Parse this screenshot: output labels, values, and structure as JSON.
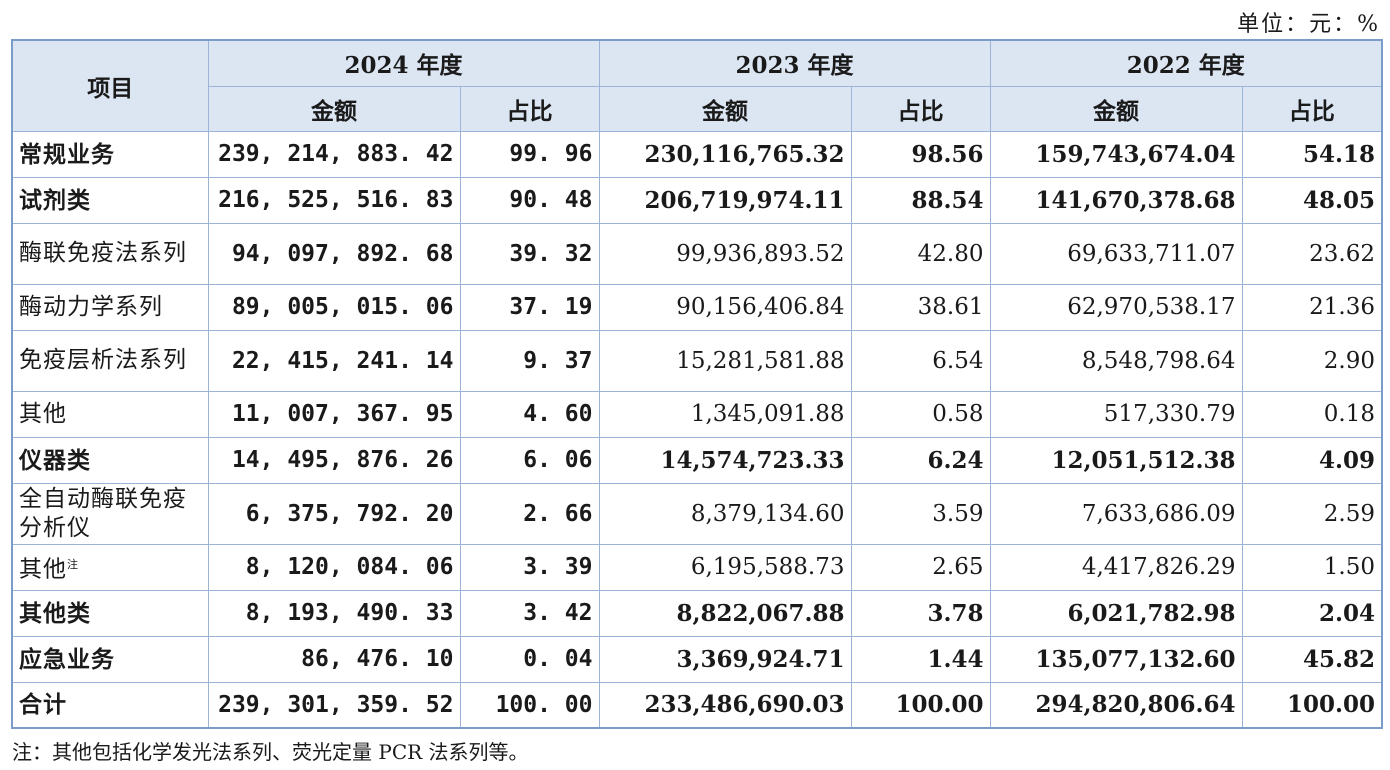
{
  "unit": "单位：元：%",
  "header": {
    "item": "项目",
    "years": [
      "2024 年度",
      "2023 年度",
      "2022 年度"
    ],
    "amount": "金额",
    "ratio": "占比"
  },
  "rows": [
    {
      "label": "常规业务",
      "bold": true,
      "v": [
        "239, 214, 883. 42",
        "99. 96",
        "230,116,765.32",
        "98.56",
        "159,743,674.04",
        "54.18"
      ]
    },
    {
      "label": "试剂类",
      "bold": true,
      "v": [
        "216, 525, 516. 83",
        "90. 48",
        "206,719,974.11",
        "88.54",
        "141,670,378.68",
        "48.05"
      ]
    },
    {
      "label": "酶联免疫法系列",
      "bold": false,
      "v": [
        "94, 097, 892. 68",
        "39. 32",
        "99,936,893.52",
        "42.80",
        "69,633,711.07",
        "23.62"
      ]
    },
    {
      "label": "酶动力学系列",
      "bold": false,
      "v": [
        "89, 005, 015. 06",
        "37. 19",
        "90,156,406.84",
        "38.61",
        "62,970,538.17",
        "21.36"
      ]
    },
    {
      "label": "免疫层析法系列",
      "bold": false,
      "v": [
        "22, 415, 241. 14",
        "9. 37",
        "15,281,581.88",
        "6.54",
        "8,548,798.64",
        "2.90"
      ]
    },
    {
      "label": "其他",
      "bold": false,
      "v": [
        "11, 007, 367. 95",
        "4. 60",
        "1,345,091.88",
        "0.58",
        "517,330.79",
        "0.18"
      ]
    },
    {
      "label": "仪器类",
      "bold": true,
      "v": [
        "14, 495, 876. 26",
        "6. 06",
        "14,574,723.33",
        "6.24",
        "12,051,512.38",
        "4.09"
      ]
    },
    {
      "label": "全自动酶联免疫分析仪",
      "bold": false,
      "v": [
        "6, 375, 792. 20",
        "2. 66",
        "8,379,134.60",
        "3.59",
        "7,633,686.09",
        "2.59"
      ]
    },
    {
      "label": "其他",
      "sup": "注",
      "bold": false,
      "v": [
        "8, 120, 084. 06",
        "3. 39",
        "6,195,588.73",
        "2.65",
        "4,417,826.29",
        "1.50"
      ]
    },
    {
      "label": "其他类",
      "bold": true,
      "v": [
        "8, 193, 490. 33",
        "3. 42",
        "8,822,067.88",
        "3.78",
        "6,021,782.98",
        "2.04"
      ]
    },
    {
      "label": "应急业务",
      "bold": true,
      "v": [
        "86, 476. 10",
        "0. 04",
        "3,369,924.71",
        "1.44",
        "135,077,132.60",
        "45.82"
      ]
    },
    {
      "label": "合计",
      "bold": true,
      "v": [
        "239, 301, 359. 52",
        "100. 00",
        "233,486,690.03",
        "100.00",
        "294,820,806.64",
        "100.00"
      ]
    }
  ],
  "note": "注：其他包括化学发光法系列、荧光定量 PCR 法系列等。",
  "colors": {
    "header_bg": "#dce6f3",
    "border": "#9bb4d8"
  }
}
